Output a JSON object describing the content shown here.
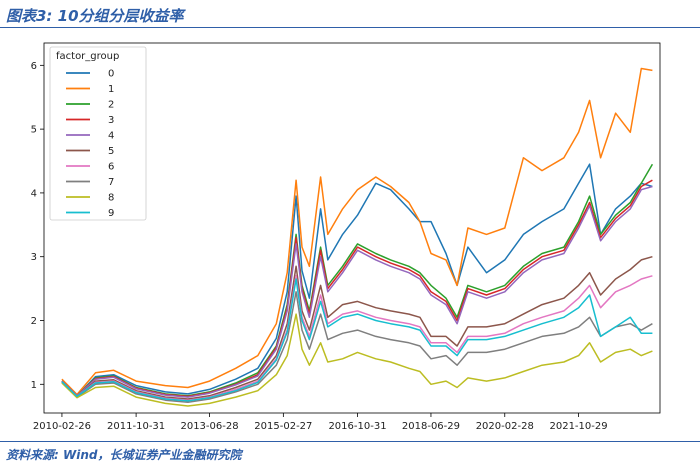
{
  "figure": {
    "title": "图表3:  10分组分层收益率",
    "source": "资料来源:  Wind，长城证券产业金融研究院"
  },
  "chart_data": {
    "type": "line",
    "legend_title": "factor_group",
    "legend_position": "top-left",
    "grid": false,
    "x_ticks": [
      "2010-02-26",
      "2011-10-31",
      "2013-06-28",
      "2015-02-27",
      "2016-10-31",
      "2018-06-29",
      "2020-02-28",
      "2021-10-29"
    ],
    "y_ticks": [
      1,
      2,
      3,
      4,
      5,
      6
    ],
    "xlim": [
      "2009-10-01",
      "2023-09-01"
    ],
    "ylim": [
      0.55,
      6.35
    ],
    "series": [
      {
        "name": "0",
        "color": "#1f77b4",
        "x": [
          "2010-02-26",
          "2010-06-30",
          "2010-11-30",
          "2011-04-29",
          "2011-10-31",
          "2012-06-29",
          "2012-12-31",
          "2013-06-28",
          "2014-01-30",
          "2014-07-31",
          "2014-12-31",
          "2015-03-31",
          "2015-06-12",
          "2015-07-31",
          "2015-09-30",
          "2015-12-31",
          "2016-02-29",
          "2016-06-30",
          "2016-10-31",
          "2017-03-31",
          "2017-07-31",
          "2017-12-29",
          "2018-03-30",
          "2018-06-29",
          "2018-10-31",
          "2019-01-31",
          "2019-04-30",
          "2019-09-30",
          "2020-02-28",
          "2020-07-31",
          "2020-12-31",
          "2021-06-30",
          "2021-10-29",
          "2022-01-28",
          "2022-04-29",
          "2022-08-31",
          "2022-12-30",
          "2023-03-31",
          "2023-06-30"
        ],
        "y": [
          1.05,
          0.82,
          1.12,
          1.15,
          0.98,
          0.88,
          0.85,
          0.92,
          1.08,
          1.25,
          1.72,
          2.45,
          3.95,
          2.78,
          2.35,
          3.75,
          2.95,
          3.35,
          3.65,
          4.15,
          4.05,
          3.75,
          3.55,
          3.55,
          3.05,
          2.55,
          3.15,
          2.75,
          2.95,
          3.35,
          3.55,
          3.75,
          4.15,
          4.45,
          3.35,
          3.75,
          3.95,
          4.15,
          4.1
        ]
      },
      {
        "name": "1",
        "color": "#ff7f0e",
        "x": [
          "2010-02-26",
          "2010-06-30",
          "2010-11-30",
          "2011-04-29",
          "2011-10-31",
          "2012-06-29",
          "2012-12-31",
          "2013-06-28",
          "2014-01-30",
          "2014-07-31",
          "2014-12-31",
          "2015-03-31",
          "2015-06-12",
          "2015-07-31",
          "2015-09-30",
          "2015-12-31",
          "2016-02-29",
          "2016-06-30",
          "2016-10-31",
          "2017-03-31",
          "2017-07-31",
          "2017-12-29",
          "2018-03-30",
          "2018-06-29",
          "2018-10-31",
          "2019-01-31",
          "2019-04-30",
          "2019-09-30",
          "2020-02-28",
          "2020-07-31",
          "2020-12-31",
          "2021-06-30",
          "2021-10-29",
          "2022-01-28",
          "2022-04-29",
          "2022-08-31",
          "2022-12-30",
          "2023-03-31",
          "2023-06-30"
        ],
        "y": [
          1.08,
          0.84,
          1.18,
          1.22,
          1.05,
          0.98,
          0.95,
          1.05,
          1.25,
          1.45,
          1.95,
          2.75,
          4.2,
          3.15,
          2.85,
          4.25,
          3.35,
          3.75,
          4.05,
          4.25,
          4.1,
          3.85,
          3.55,
          3.05,
          2.95,
          2.55,
          3.45,
          3.35,
          3.45,
          4.55,
          4.35,
          4.55,
          4.95,
          5.45,
          4.55,
          5.25,
          4.95,
          5.95,
          5.92
        ]
      },
      {
        "name": "2",
        "color": "#2ca02c",
        "x": [
          "2010-02-26",
          "2010-06-30",
          "2010-11-30",
          "2011-04-29",
          "2011-10-31",
          "2012-06-29",
          "2012-12-31",
          "2013-06-28",
          "2014-01-30",
          "2014-07-31",
          "2014-12-31",
          "2015-03-31",
          "2015-06-12",
          "2015-07-31",
          "2015-09-30",
          "2015-12-31",
          "2016-02-29",
          "2016-06-30",
          "2016-10-31",
          "2017-03-31",
          "2017-07-31",
          "2017-12-29",
          "2018-03-30",
          "2018-06-29",
          "2018-10-31",
          "2019-01-31",
          "2019-04-30",
          "2019-09-30",
          "2020-02-28",
          "2020-07-31",
          "2020-12-31",
          "2021-06-30",
          "2021-10-29",
          "2022-01-28",
          "2022-04-29",
          "2022-08-31",
          "2022-12-30",
          "2023-03-31",
          "2023-06-30"
        ],
        "y": [
          1.05,
          0.82,
          1.1,
          1.13,
          0.95,
          0.85,
          0.82,
          0.88,
          1.02,
          1.18,
          1.6,
          2.25,
          3.35,
          2.55,
          2.15,
          3.15,
          2.55,
          2.85,
          3.2,
          3.05,
          2.95,
          2.85,
          2.75,
          2.55,
          2.35,
          2.05,
          2.55,
          2.45,
          2.55,
          2.85,
          3.05,
          3.15,
          3.55,
          3.95,
          3.35,
          3.65,
          3.85,
          4.15,
          4.45
        ]
      },
      {
        "name": "3",
        "color": "#d62728",
        "x": [
          "2010-02-26",
          "2010-06-30",
          "2010-11-30",
          "2011-04-29",
          "2011-10-31",
          "2012-06-29",
          "2012-12-31",
          "2013-06-28",
          "2014-01-30",
          "2014-07-31",
          "2014-12-31",
          "2015-03-31",
          "2015-06-12",
          "2015-07-31",
          "2015-09-30",
          "2015-12-31",
          "2016-02-29",
          "2016-06-30",
          "2016-10-31",
          "2017-03-31",
          "2017-07-31",
          "2017-12-29",
          "2018-03-30",
          "2018-06-29",
          "2018-10-31",
          "2019-01-31",
          "2019-04-30",
          "2019-09-30",
          "2020-02-28",
          "2020-07-31",
          "2020-12-31",
          "2021-06-30",
          "2021-10-29",
          "2022-01-28",
          "2022-04-29",
          "2022-08-31",
          "2022-12-30",
          "2023-03-31",
          "2023-06-30"
        ],
        "y": [
          1.05,
          0.82,
          1.09,
          1.12,
          0.94,
          0.84,
          0.81,
          0.87,
          1.0,
          1.15,
          1.58,
          2.2,
          3.3,
          2.5,
          2.1,
          3.1,
          2.5,
          2.8,
          3.15,
          3.0,
          2.9,
          2.8,
          2.7,
          2.45,
          2.3,
          2.0,
          2.5,
          2.4,
          2.5,
          2.8,
          3.0,
          3.1,
          3.5,
          3.85,
          3.3,
          3.6,
          3.8,
          4.1,
          4.2
        ]
      },
      {
        "name": "4",
        "color": "#9467bd",
        "x": [
          "2010-02-26",
          "2010-06-30",
          "2010-11-30",
          "2011-04-29",
          "2011-10-31",
          "2012-06-29",
          "2012-12-31",
          "2013-06-28",
          "2014-01-30",
          "2014-07-31",
          "2014-12-31",
          "2015-03-31",
          "2015-06-12",
          "2015-07-31",
          "2015-09-30",
          "2015-12-31",
          "2016-02-29",
          "2016-06-30",
          "2016-10-31",
          "2017-03-31",
          "2017-07-31",
          "2017-12-29",
          "2018-03-30",
          "2018-06-29",
          "2018-10-31",
          "2019-01-31",
          "2019-04-30",
          "2019-09-30",
          "2020-02-28",
          "2020-07-31",
          "2020-12-31",
          "2021-06-30",
          "2021-10-29",
          "2022-01-28",
          "2022-04-29",
          "2022-08-31",
          "2022-12-30",
          "2023-03-31",
          "2023-06-30"
        ],
        "y": [
          1.05,
          0.82,
          1.08,
          1.11,
          0.93,
          0.83,
          0.8,
          0.86,
          0.99,
          1.13,
          1.55,
          2.15,
          3.2,
          2.45,
          2.05,
          3.0,
          2.45,
          2.75,
          3.1,
          2.95,
          2.85,
          2.75,
          2.65,
          2.4,
          2.25,
          1.95,
          2.45,
          2.35,
          2.45,
          2.75,
          2.95,
          3.05,
          3.45,
          3.8,
          3.25,
          3.55,
          3.75,
          4.05,
          4.1
        ]
      },
      {
        "name": "5",
        "color": "#8c564b",
        "x": [
          "2010-02-26",
          "2010-06-30",
          "2010-11-30",
          "2011-04-29",
          "2011-10-31",
          "2012-06-29",
          "2012-12-31",
          "2013-06-28",
          "2014-01-30",
          "2014-07-31",
          "2014-12-31",
          "2015-03-31",
          "2015-06-12",
          "2015-07-31",
          "2015-09-30",
          "2015-12-31",
          "2016-02-29",
          "2016-06-30",
          "2016-10-31",
          "2017-03-31",
          "2017-07-31",
          "2017-12-29",
          "2018-03-30",
          "2018-06-29",
          "2018-10-31",
          "2019-01-31",
          "2019-04-30",
          "2019-09-30",
          "2020-02-28",
          "2020-07-31",
          "2020-12-31",
          "2021-06-30",
          "2021-10-29",
          "2022-01-28",
          "2022-04-29",
          "2022-08-31",
          "2022-12-30",
          "2023-03-31",
          "2023-06-30"
        ],
        "y": [
          1.04,
          0.81,
          1.05,
          1.07,
          0.9,
          0.8,
          0.77,
          0.82,
          0.95,
          1.08,
          1.45,
          1.95,
          2.85,
          2.15,
          1.85,
          2.55,
          2.05,
          2.25,
          2.3,
          2.2,
          2.15,
          2.1,
          2.05,
          1.75,
          1.75,
          1.6,
          1.9,
          1.9,
          1.95,
          2.1,
          2.25,
          2.35,
          2.55,
          2.75,
          2.4,
          2.65,
          2.8,
          2.95,
          3.0
        ]
      },
      {
        "name": "6",
        "color": "#e377c2",
        "x": [
          "2010-02-26",
          "2010-06-30",
          "2010-11-30",
          "2011-04-29",
          "2011-10-31",
          "2012-06-29",
          "2012-12-31",
          "2013-06-28",
          "2014-01-30",
          "2014-07-31",
          "2014-12-31",
          "2015-03-31",
          "2015-06-12",
          "2015-07-31",
          "2015-09-30",
          "2015-12-31",
          "2016-02-29",
          "2016-06-30",
          "2016-10-31",
          "2017-03-31",
          "2017-07-31",
          "2017-12-29",
          "2018-03-30",
          "2018-06-29",
          "2018-10-31",
          "2019-01-31",
          "2019-04-30",
          "2019-09-30",
          "2020-02-28",
          "2020-07-31",
          "2020-12-31",
          "2021-06-30",
          "2021-10-29",
          "2022-01-28",
          "2022-04-29",
          "2022-08-31",
          "2022-12-30",
          "2023-03-31",
          "2023-06-30"
        ],
        "y": [
          1.04,
          0.81,
          1.03,
          1.05,
          0.88,
          0.78,
          0.75,
          0.8,
          0.92,
          1.05,
          1.4,
          1.85,
          2.7,
          2.05,
          1.75,
          2.4,
          1.95,
          2.1,
          2.15,
          2.05,
          2.0,
          1.95,
          1.9,
          1.65,
          1.65,
          1.5,
          1.75,
          1.75,
          1.8,
          1.95,
          2.05,
          2.15,
          2.35,
          2.55,
          2.2,
          2.45,
          2.55,
          2.65,
          2.7
        ]
      },
      {
        "name": "7",
        "color": "#7f7f7f",
        "x": [
          "2010-02-26",
          "2010-06-30",
          "2010-11-30",
          "2011-04-29",
          "2011-10-31",
          "2012-06-29",
          "2012-12-31",
          "2013-06-28",
          "2014-01-30",
          "2014-07-31",
          "2014-12-31",
          "2015-03-31",
          "2015-06-12",
          "2015-07-31",
          "2015-09-30",
          "2015-12-31",
          "2016-02-29",
          "2016-06-30",
          "2016-10-31",
          "2017-03-31",
          "2017-07-31",
          "2017-12-29",
          "2018-03-30",
          "2018-06-29",
          "2018-10-31",
          "2019-01-31",
          "2019-04-30",
          "2019-09-30",
          "2020-02-28",
          "2020-07-31",
          "2020-12-31",
          "2021-06-30",
          "2021-10-29",
          "2022-01-28",
          "2022-04-29",
          "2022-08-31",
          "2022-12-30",
          "2023-03-31",
          "2023-06-30"
        ],
        "y": [
          1.03,
          0.8,
          1.0,
          1.02,
          0.85,
          0.75,
          0.72,
          0.77,
          0.88,
          1.0,
          1.3,
          1.7,
          2.45,
          1.85,
          1.55,
          2.1,
          1.7,
          1.8,
          1.85,
          1.75,
          1.7,
          1.65,
          1.6,
          1.4,
          1.45,
          1.3,
          1.5,
          1.5,
          1.55,
          1.65,
          1.75,
          1.8,
          1.9,
          2.05,
          1.75,
          1.9,
          1.95,
          1.85,
          1.95
        ]
      },
      {
        "name": "8",
        "color": "#bcbd22",
        "x": [
          "2010-02-26",
          "2010-06-30",
          "2010-11-30",
          "2011-04-29",
          "2011-10-31",
          "2012-06-29",
          "2012-12-31",
          "2013-06-28",
          "2014-01-30",
          "2014-07-31",
          "2014-12-31",
          "2015-03-31",
          "2015-06-12",
          "2015-07-31",
          "2015-09-30",
          "2015-12-31",
          "2016-02-29",
          "2016-06-30",
          "2016-10-31",
          "2017-03-31",
          "2017-07-31",
          "2017-12-29",
          "2018-03-30",
          "2018-06-29",
          "2018-10-31",
          "2019-01-31",
          "2019-04-30",
          "2019-09-30",
          "2020-02-28",
          "2020-07-31",
          "2020-12-31",
          "2021-06-30",
          "2021-10-29",
          "2022-01-28",
          "2022-04-29",
          "2022-08-31",
          "2022-12-30",
          "2023-03-31",
          "2023-06-30"
        ],
        "y": [
          1.02,
          0.79,
          0.95,
          0.97,
          0.8,
          0.7,
          0.66,
          0.7,
          0.8,
          0.9,
          1.15,
          1.45,
          2.1,
          1.55,
          1.3,
          1.65,
          1.35,
          1.4,
          1.5,
          1.4,
          1.35,
          1.25,
          1.2,
          1.0,
          1.05,
          0.95,
          1.1,
          1.05,
          1.1,
          1.2,
          1.3,
          1.35,
          1.45,
          1.65,
          1.35,
          1.5,
          1.55,
          1.45,
          1.52
        ]
      },
      {
        "name": "9",
        "color": "#17becf",
        "x": [
          "2010-02-26",
          "2010-06-30",
          "2010-11-30",
          "2011-04-29",
          "2011-10-31",
          "2012-06-29",
          "2012-12-31",
          "2013-06-28",
          "2014-01-30",
          "2014-07-31",
          "2014-12-31",
          "2015-03-31",
          "2015-06-12",
          "2015-07-31",
          "2015-09-30",
          "2015-12-31",
          "2016-02-29",
          "2016-06-30",
          "2016-10-31",
          "2017-03-31",
          "2017-07-31",
          "2017-12-29",
          "2018-03-30",
          "2018-06-29",
          "2018-10-31",
          "2019-01-31",
          "2019-04-30",
          "2019-09-30",
          "2020-02-28",
          "2020-07-31",
          "2020-12-31",
          "2021-06-30",
          "2021-10-29",
          "2022-01-28",
          "2022-04-29",
          "2022-08-31",
          "2022-12-30",
          "2023-03-31",
          "2023-06-30"
        ],
        "y": [
          1.04,
          0.81,
          1.02,
          1.04,
          0.87,
          0.77,
          0.74,
          0.79,
          0.9,
          1.03,
          1.38,
          1.82,
          2.65,
          2.0,
          1.7,
          2.3,
          1.9,
          2.05,
          2.1,
          2.0,
          1.95,
          1.9,
          1.85,
          1.6,
          1.6,
          1.45,
          1.7,
          1.7,
          1.75,
          1.85,
          1.95,
          2.05,
          2.2,
          2.4,
          1.75,
          1.9,
          2.05,
          1.8,
          1.8
        ]
      }
    ]
  }
}
